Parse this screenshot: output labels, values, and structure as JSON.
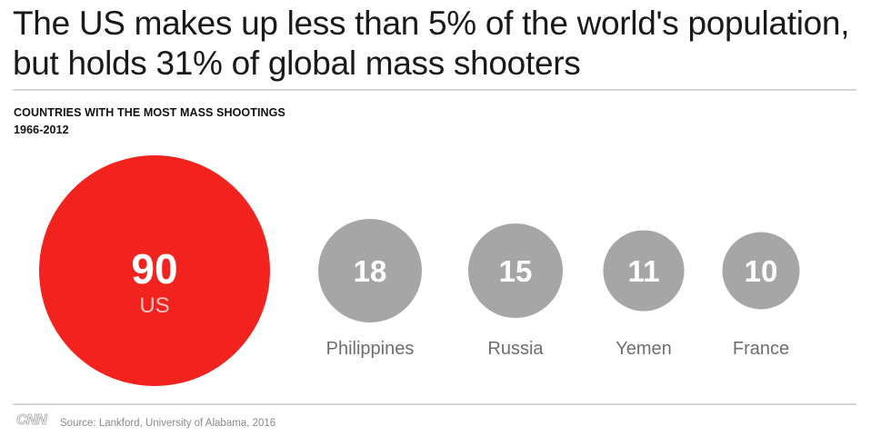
{
  "headline": "The US makes up less than 5% of the world's population, but holds 31% of global mass shooters",
  "footer": {
    "logo_text": "CNN",
    "source": "Source: Lankford, University of Alabama, 2016"
  },
  "chart_data": {
    "type": "bubble",
    "title": "COUNTRIES WITH THE MOST MASS SHOOTINGS",
    "subtitle": "1966-2012",
    "categories": [
      "US",
      "Philippines",
      "Russia",
      "Yemen",
      "France"
    ],
    "values": [
      90,
      18,
      15,
      11,
      10
    ],
    "highlight": "US",
    "colors": {
      "highlight": "#f2231e",
      "default": "#a6a6a6",
      "value_text": "#ffffff",
      "label_text": "#6e6e6e",
      "highlight_label_text": "#f3c4c2"
    },
    "legend": "none",
    "grid": false
  }
}
